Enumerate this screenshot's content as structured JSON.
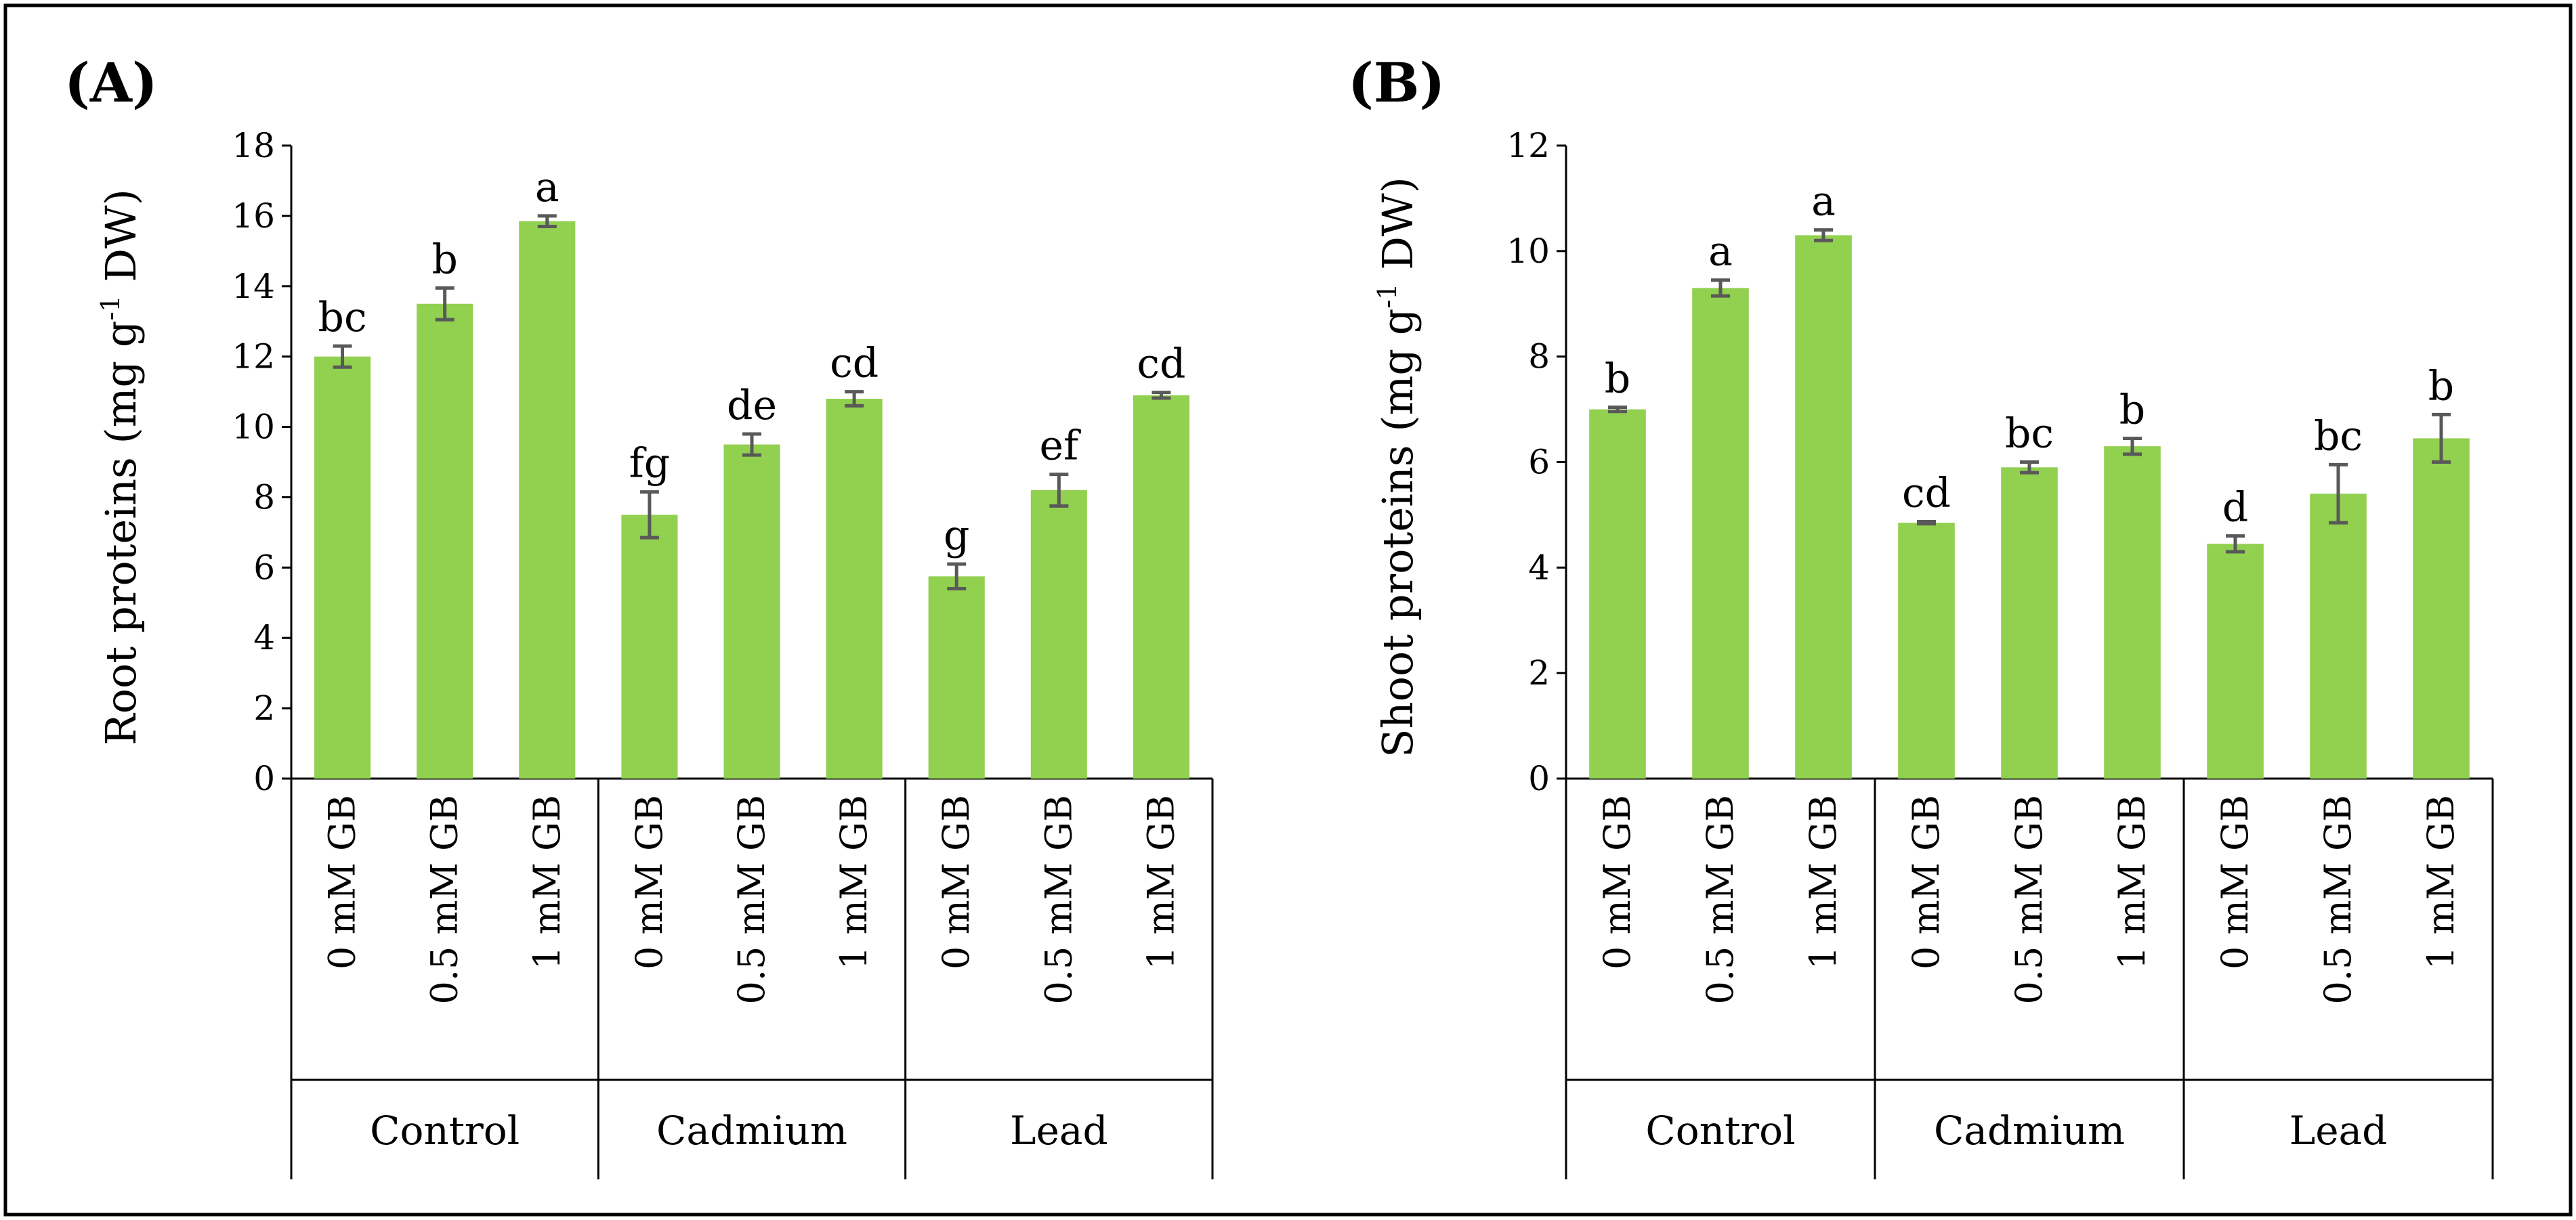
{
  "colors": {
    "bar": "#92d050",
    "errorbar": "#595959",
    "axis": "#000000",
    "frame": "#000000"
  },
  "chart_data": [
    {
      "type": "bar",
      "panel_label": "(A)",
      "ylabel_main": "Root proteins (mg g",
      "ylabel_sup": "-1",
      "ylabel_end": " DW)",
      "ylim": [
        0,
        18
      ],
      "yticks": [
        "0",
        "2",
        "4",
        "6",
        "8",
        "10",
        "12",
        "14",
        "16",
        "18"
      ],
      "categories": [
        "0 mM GB",
        "0.5 mM GB",
        "1 mM GB",
        "0 mM GB",
        "0.5 mM GB",
        "1 mM GB",
        "0 mM GB",
        "0.5 mM GB",
        "1 mM GB"
      ],
      "groups": [
        "Control",
        "Cadmium",
        "Lead"
      ],
      "values": [
        12.0,
        13.5,
        15.85,
        7.5,
        9.5,
        10.8,
        5.75,
        8.2,
        10.9
      ],
      "errors": [
        0.3,
        0.45,
        0.15,
        0.65,
        0.3,
        0.2,
        0.35,
        0.45,
        0.08
      ],
      "letters": [
        "bc",
        "b",
        "a",
        "fg",
        "de",
        "cd",
        "g",
        "ef",
        "cd"
      ]
    },
    {
      "type": "bar",
      "panel_label": "(B)",
      "ylabel_main": "Shoot proteins (mg g",
      "ylabel_sup": "-1",
      "ylabel_end": " DW)",
      "ylim": [
        0,
        12
      ],
      "yticks": [
        "0",
        "2",
        "4",
        "6",
        "8",
        "10",
        "12"
      ],
      "categories": [
        "0 mM GB",
        "0.5 mM GB",
        "1 mM GB",
        "0 mM GB",
        "0.5 mM GB",
        "1 mM GB",
        "0 mM GB",
        "0.5 mM GB",
        "1 mM GB"
      ],
      "groups": [
        "Control",
        "Cadmium",
        "Lead"
      ],
      "values": [
        7.0,
        9.3,
        10.3,
        4.85,
        5.9,
        6.3,
        4.45,
        5.4,
        6.45
      ],
      "errors": [
        0.04,
        0.15,
        0.1,
        0.02,
        0.1,
        0.15,
        0.15,
        0.55,
        0.45
      ],
      "letters": [
        "b",
        "a",
        "a",
        "cd",
        "bc",
        "b",
        "d",
        "bc",
        "b"
      ]
    }
  ]
}
